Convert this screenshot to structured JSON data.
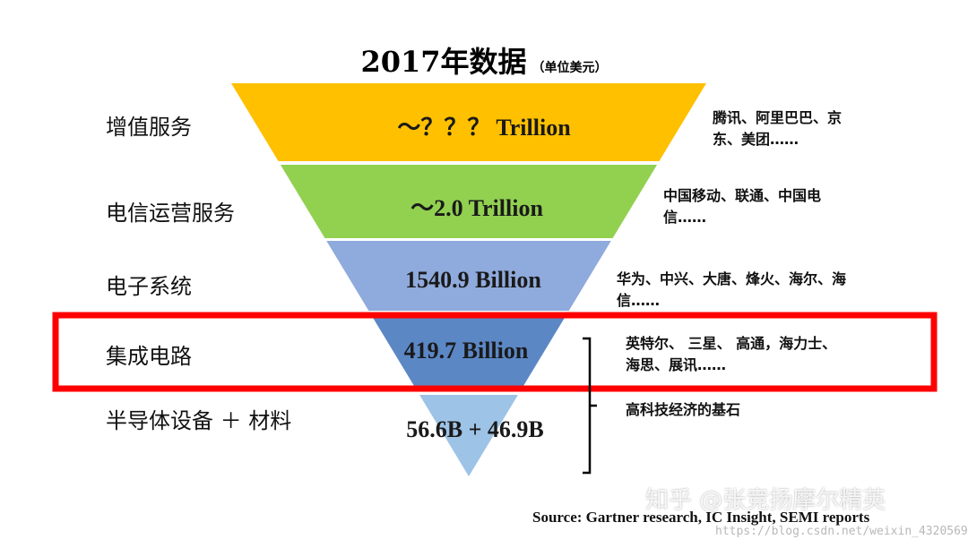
{
  "header": {
    "title": "2017年数据",
    "unit": "（单位美元）"
  },
  "layers": [
    {
      "label": "增值服务",
      "value": "～？？？ Trillion",
      "color": "#ffc000",
      "companies": [
        "腾讯、阿里巴巴、京",
        "东、美团……"
      ]
    },
    {
      "label": "电信运营服务",
      "value": "～2.0  Trillion",
      "color": "#92d050",
      "companies": [
        "中国移动、联通、中国电",
        "信……"
      ]
    },
    {
      "label": "电子系统",
      "value": "1540.9 Billion",
      "color": "#8faadc",
      "companies": [
        "华为、中兴、大唐、烽火、海尔、海",
        "信……"
      ]
    },
    {
      "label": "集成电路",
      "value": "419.7 Billion",
      "color": "#5b87c5",
      "companies": [
        "英特尔、 三星、 高通，海力士、",
        "海思、展讯……"
      ]
    },
    {
      "label": "半导体设备 ＋ 材料",
      "value": "56.6B + 46.9B",
      "color": "#9dc3e6",
      "companies": [
        "高科技经济的基石"
      ]
    }
  ],
  "highlight": {
    "color": "#ff0000",
    "target": "集成电路"
  },
  "source": "Source:  Gartner research, IC Insight, SEMI reports",
  "watermarks": {
    "zhihu": "知乎 @张竞扬摩尔精英",
    "csdn": "https://blog.csdn.net/weixin_43205692"
  }
}
